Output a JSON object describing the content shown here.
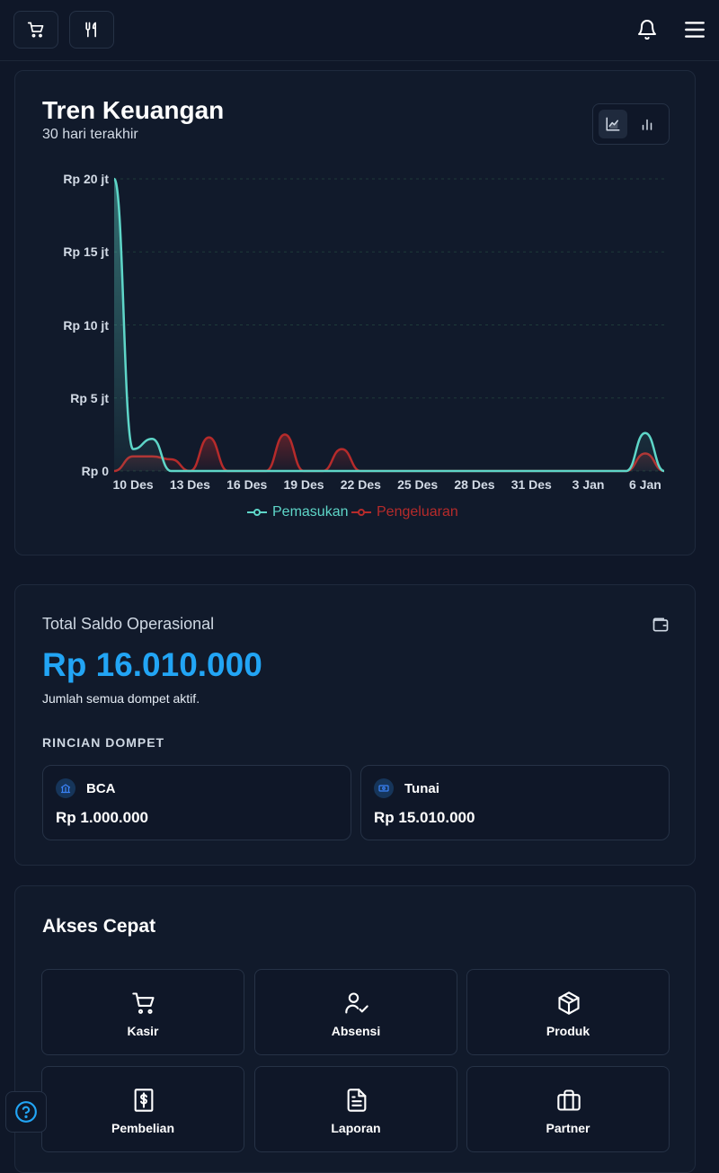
{
  "topbar": {
    "left_icons": [
      "cart-icon",
      "utensils-icon"
    ],
    "right_icons": [
      "bell-icon",
      "menu-icon"
    ]
  },
  "chart_card": {
    "title": "Tren Keuangan",
    "subtitle": "30 hari terakhir",
    "view_toggle": [
      "area-chart-icon",
      "bar-chart-icon"
    ],
    "active_view": "area-chart-icon"
  },
  "chart_data": {
    "type": "area",
    "x": [
      "9 Des",
      "10 Des",
      "11 Des",
      "12 Des",
      "13 Des",
      "14 Des",
      "15 Des",
      "16 Des",
      "17 Des",
      "18 Des",
      "19 Des",
      "20 Des",
      "21 Des",
      "22 Des",
      "23 Des",
      "24 Des",
      "25 Des",
      "26 Des",
      "27 Des",
      "28 Des",
      "29 Des",
      "30 Des",
      "31 Des",
      "1 Jan",
      "2 Jan",
      "3 Jan",
      "4 Jan",
      "5 Jan",
      "6 Jan",
      "7 Jan"
    ],
    "x_tick_labels": [
      "10 Des",
      "13 Des",
      "16 Des",
      "19 Des",
      "22 Des",
      "25 Des",
      "28 Des",
      "31 Des",
      "3 Jan",
      "6 Jan"
    ],
    "y_tick_labels": [
      "Rp 0",
      "Rp 5 jt",
      "Rp 10 jt",
      "Rp 15 jt",
      "Rp 20 jt"
    ],
    "ylim": [
      0,
      20000000
    ],
    "series": [
      {
        "name": "Pemasukan",
        "color": "#5ed6c8",
        "values": [
          20000000,
          1500000,
          2200000,
          0,
          0,
          0,
          0,
          0,
          0,
          0,
          0,
          0,
          0,
          0,
          0,
          0,
          0,
          0,
          0,
          0,
          0,
          0,
          0,
          0,
          0,
          0,
          0,
          0,
          2600000,
          0
        ]
      },
      {
        "name": "Pengeluaran",
        "color": "#b62b2b",
        "values": [
          0,
          1000000,
          1000000,
          800000,
          0,
          2300000,
          0,
          0,
          0,
          2500000,
          0,
          0,
          1500000,
          0,
          0,
          0,
          0,
          0,
          0,
          0,
          0,
          0,
          0,
          0,
          0,
          0,
          0,
          0,
          1200000,
          0
        ]
      }
    ],
    "grid": true,
    "legend": "bottom"
  },
  "saldo": {
    "label": "Total Saldo Operasional",
    "value": "Rp 16.010.000",
    "note": "Jumlah semua dompet aktif.",
    "rincian_title": "RINCIAN DOMPET",
    "wallets": [
      {
        "name": "BCA",
        "amount": "Rp 1.000.000",
        "icon": "bank-icon"
      },
      {
        "name": "Tunai",
        "amount": "Rp 15.010.000",
        "icon": "cash-icon"
      }
    ],
    "icon": "wallet-icon"
  },
  "akses": {
    "title": "Akses Cepat",
    "items": [
      {
        "label": "Kasir",
        "icon": "cart-icon"
      },
      {
        "label": "Absensi",
        "icon": "user-check-icon"
      },
      {
        "label": "Produk",
        "icon": "box-icon"
      },
      {
        "label": "Pembelian",
        "icon": "receipt-icon"
      },
      {
        "label": "Laporan",
        "icon": "document-icon"
      },
      {
        "label": "Partner",
        "icon": "briefcase-icon"
      }
    ]
  },
  "help_icon": "help-icon"
}
